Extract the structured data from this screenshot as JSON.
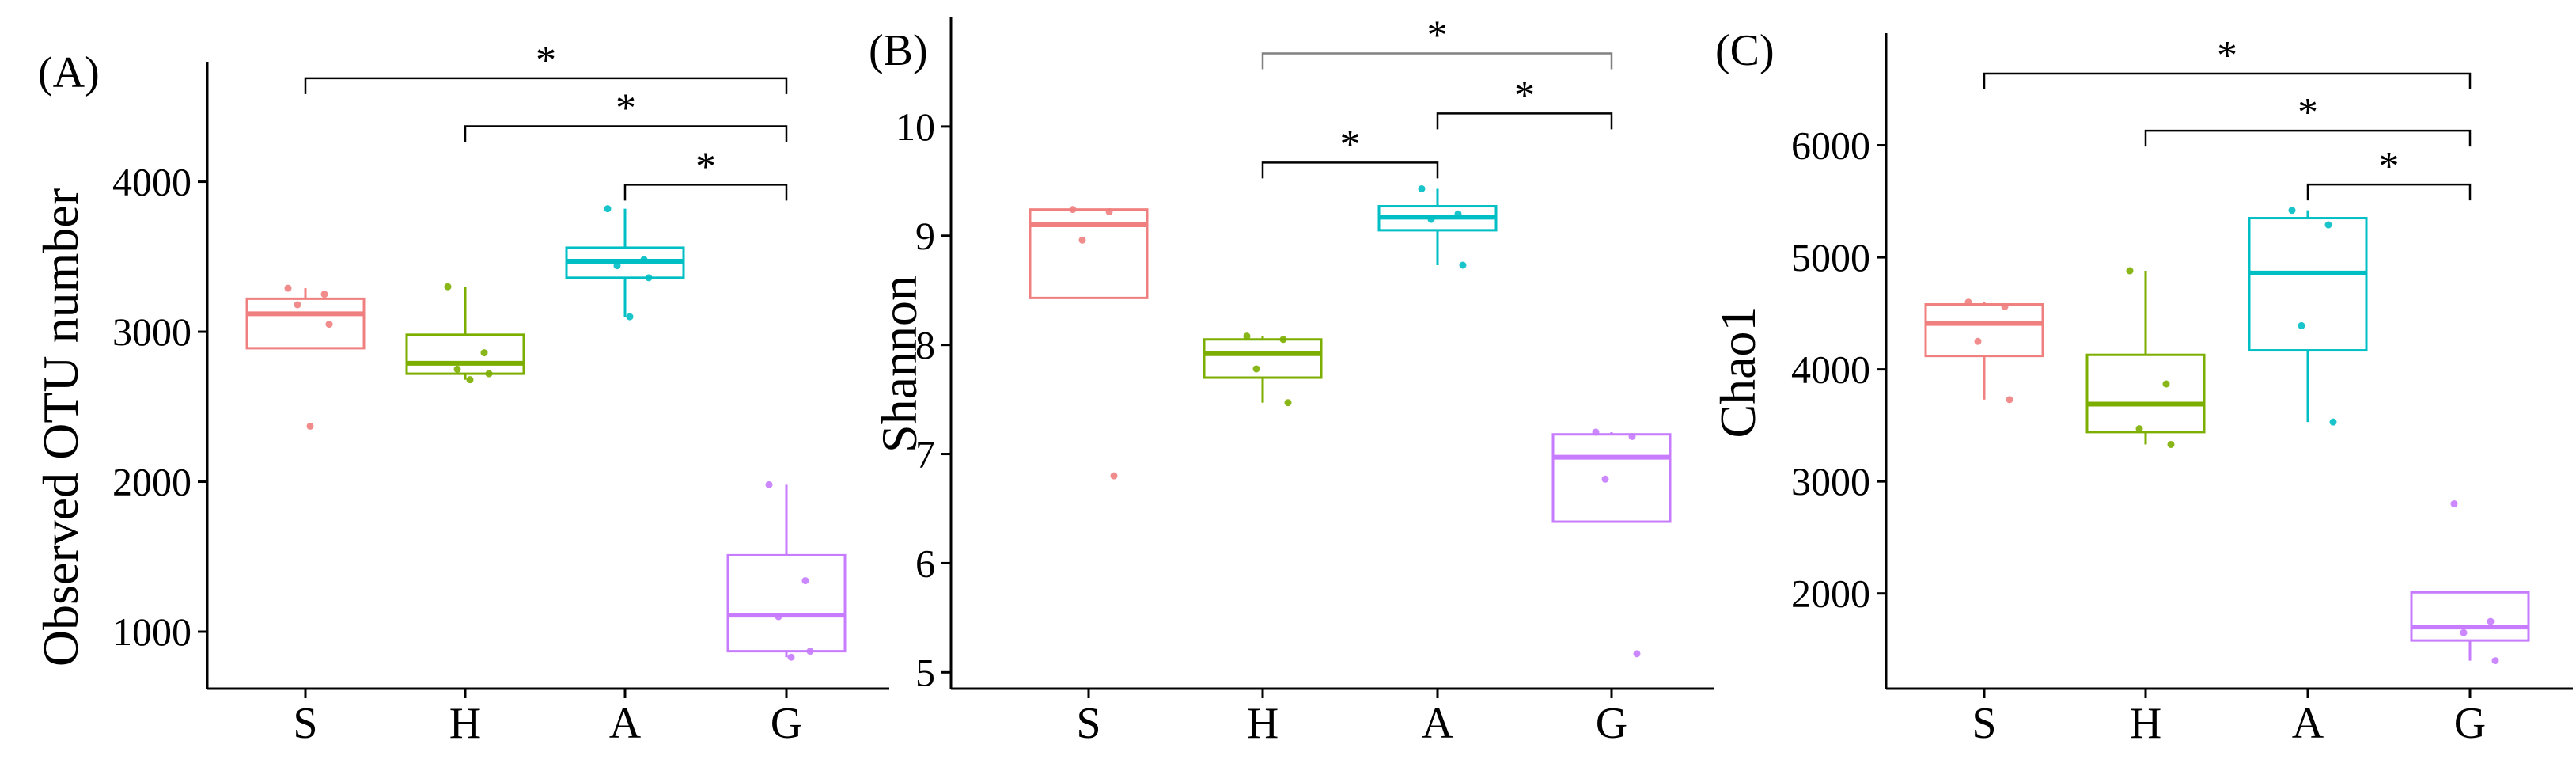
{
  "colors": {
    "S": "#F08080",
    "H": "#7CAE00",
    "A": "#00BFC4",
    "G": "#C77CFF",
    "axis": "#000000",
    "sig_dark": "#000000",
    "sig_gray": "#808080"
  },
  "chart_data": [
    {
      "type": "box",
      "panel_label": "(A)",
      "ylabel": "Observed OTU number",
      "xlabel": "",
      "categories": [
        "S",
        "H",
        "A",
        "G"
      ],
      "ylim": [
        620,
        4800
      ],
      "yticks": [
        1000,
        2000,
        3000,
        4000
      ],
      "ytick_labels": [
        "1000",
        "2000",
        "3000",
        "4000"
      ],
      "boxes": [
        {
          "group": "S",
          "q1": 2890,
          "median": 3120,
          "q3": 3220,
          "whisker_low": 2890,
          "whisker_high": 3290,
          "points": [
            3290,
            3250,
            3180,
            3050,
            2370
          ]
        },
        {
          "group": "H",
          "q1": 2720,
          "median": 2790,
          "q3": 2980,
          "whisker_low": 2680,
          "whisker_high": 3300,
          "points": [
            3300,
            2860,
            2750,
            2720,
            2680
          ]
        },
        {
          "group": "A",
          "q1": 3360,
          "median": 3470,
          "q3": 3560,
          "whisker_low": 3100,
          "whisker_high": 3820,
          "points": [
            3820,
            3480,
            3440,
            3360,
            3100
          ]
        },
        {
          "group": "G",
          "q1": 870,
          "median": 1110,
          "q3": 1510,
          "whisker_low": 830,
          "whisker_high": 1980,
          "points": [
            1980,
            1340,
            1100,
            870,
            830
          ]
        }
      ],
      "significance": [
        {
          "from": "S",
          "to": "G",
          "y": 4690,
          "label": "*",
          "color": "sig_dark"
        },
        {
          "from": "H",
          "to": "G",
          "y": 4370,
          "label": "*",
          "color": "sig_dark"
        },
        {
          "from": "A",
          "to": "G",
          "y": 3980,
          "label": "*",
          "color": "sig_dark"
        }
      ]
    },
    {
      "type": "box",
      "panel_label": "(B)",
      "ylabel": "Shannon",
      "xlabel": "",
      "categories": [
        "S",
        "H",
        "A",
        "G"
      ],
      "ylim": [
        4.85,
        11
      ],
      "yticks": [
        5,
        6,
        7,
        8,
        9,
        10
      ],
      "ytick_labels": [
        "5",
        "6",
        "7",
        "8",
        "9",
        "10"
      ],
      "boxes": [
        {
          "group": "S",
          "q1": 8.43,
          "median": 9.1,
          "q3": 9.24,
          "whisker_low": 8.43,
          "whisker_high": 9.24,
          "points": [
            9.24,
            9.22,
            8.96,
            6.8
          ]
        },
        {
          "group": "H",
          "q1": 7.7,
          "median": 7.92,
          "q3": 8.05,
          "whisker_low": 7.47,
          "whisker_high": 8.08,
          "points": [
            8.08,
            8.05,
            7.78,
            7.47
          ]
        },
        {
          "group": "A",
          "q1": 9.05,
          "median": 9.17,
          "q3": 9.27,
          "whisker_low": 8.73,
          "whisker_high": 9.43,
          "points": [
            9.43,
            9.2,
            9.15,
            8.73
          ]
        },
        {
          "group": "G",
          "q1": 6.38,
          "median": 6.97,
          "q3": 7.18,
          "whisker_low": 6.38,
          "whisker_high": 7.2,
          "points": [
            7.2,
            7.16,
            6.77,
            5.17
          ]
        }
      ],
      "significance": [
        {
          "from": "H",
          "to": "G",
          "y": 10.67,
          "label": "*",
          "color": "sig_gray"
        },
        {
          "from": "A",
          "to": "G",
          "y": 10.12,
          "label": "*",
          "color": "sig_dark"
        },
        {
          "from": "H",
          "to": "A",
          "y": 9.67,
          "label": "*",
          "color": "sig_dark"
        }
      ]
    },
    {
      "type": "box",
      "panel_label": "(C)",
      "ylabel": "Chao1",
      "xlabel": "",
      "categories": [
        "S",
        "H",
        "A",
        "G"
      ],
      "ylim": [
        1150,
        7000
      ],
      "yticks": [
        2000,
        3000,
        4000,
        5000,
        6000
      ],
      "ytick_labels": [
        "2000",
        "3000",
        "4000",
        "5000",
        "6000"
      ],
      "boxes": [
        {
          "group": "S",
          "q1": 4120,
          "median": 4410,
          "q3": 4580,
          "whisker_low": 3730,
          "whisker_high": 4600,
          "points": [
            4600,
            4560,
            4250,
            3730
          ]
        },
        {
          "group": "H",
          "q1": 3440,
          "median": 3690,
          "q3": 4130,
          "whisker_low": 3330,
          "whisker_high": 4880,
          "points": [
            4880,
            3870,
            3470,
            3330
          ]
        },
        {
          "group": "A",
          "q1": 4170,
          "median": 4860,
          "q3": 5350,
          "whisker_low": 3530,
          "whisker_high": 5420,
          "points": [
            5420,
            5290,
            4390,
            3530
          ]
        },
        {
          "group": "G",
          "q1": 1580,
          "median": 1700,
          "q3": 2010,
          "whisker_low": 1400,
          "whisker_high": 2010,
          "points": [
            2800,
            1750,
            1650,
            1400
          ]
        }
      ],
      "significance": [
        {
          "from": "S",
          "to": "G",
          "y": 6640,
          "label": "*",
          "color": "sig_dark"
        },
        {
          "from": "H",
          "to": "G",
          "y": 6130,
          "label": "*",
          "color": "sig_dark"
        },
        {
          "from": "A",
          "to": "G",
          "y": 5650,
          "label": "*",
          "color": "sig_dark"
        }
      ]
    }
  ]
}
